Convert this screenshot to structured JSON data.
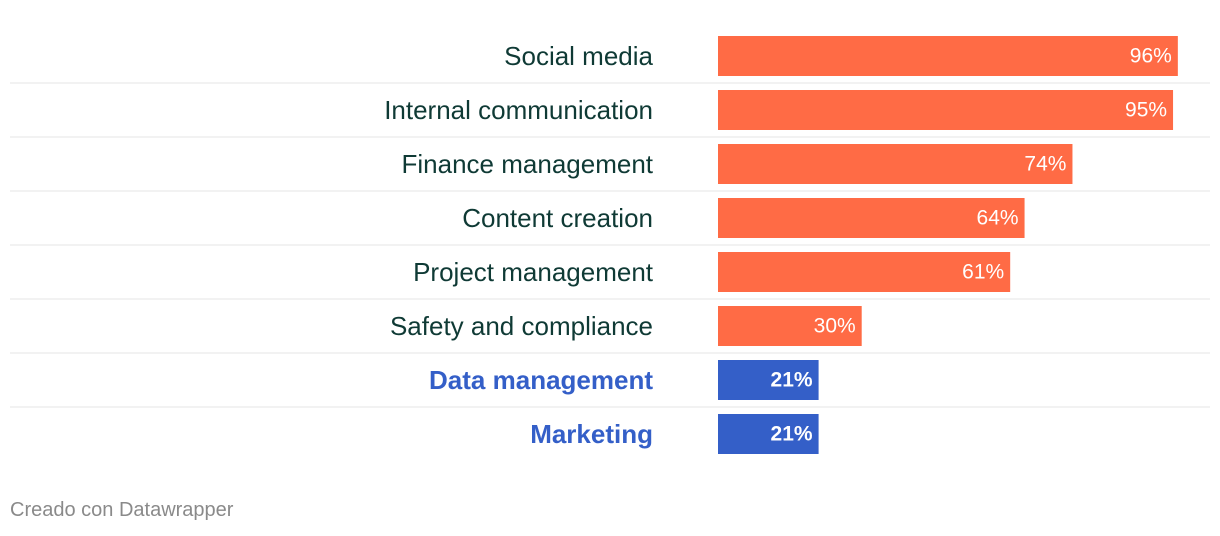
{
  "chart_data": {
    "type": "bar",
    "orientation": "horizontal",
    "categories": [
      "Social media",
      "Internal communication",
      "Finance management",
      "Content creation",
      "Project management",
      "Safety and compliance",
      "Data management",
      "Marketing"
    ],
    "values": [
      96,
      95,
      74,
      64,
      61,
      30,
      21,
      21
    ],
    "value_labels": [
      "96%",
      "95%",
      "74%",
      "64%",
      "61%",
      "30%",
      "21%",
      "21%"
    ],
    "highlighted": [
      false,
      false,
      false,
      false,
      false,
      false,
      true,
      true
    ],
    "unit": "%",
    "xlim": [
      0,
      100
    ],
    "grid": false,
    "colors": {
      "default_bar": "#ff6b45",
      "highlight_bar": "#345fc8",
      "default_label": "#0f3a35",
      "highlight_label": "#345fc8",
      "value_text": "#ffffff",
      "separator": "#e6e6e6"
    }
  },
  "footer": {
    "credit": "Creado con Datawrapper"
  }
}
